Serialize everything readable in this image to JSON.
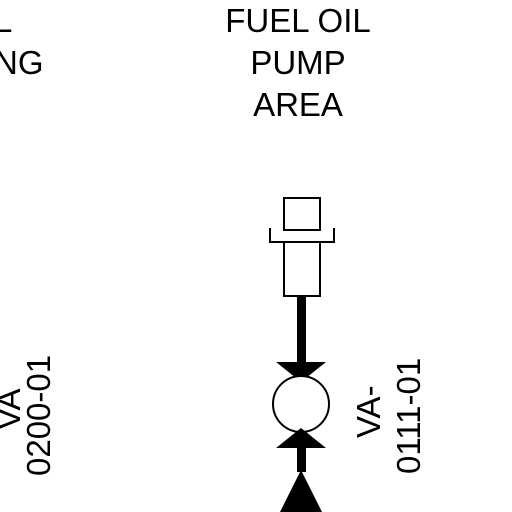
{
  "colors": {
    "line": "#000000",
    "background": "#ffffff"
  },
  "left_area": {
    "line1": "L",
    "line2": "NG"
  },
  "pump_area": {
    "line1": "FUEL OIL",
    "line2": "PUMP",
    "line3": "AREA"
  },
  "left_valve": {
    "tag_part1": "VA",
    "tag_part2": "0200-01"
  },
  "right_valve": {
    "tag_part1": "VA-",
    "tag_part2": "0111-01"
  }
}
